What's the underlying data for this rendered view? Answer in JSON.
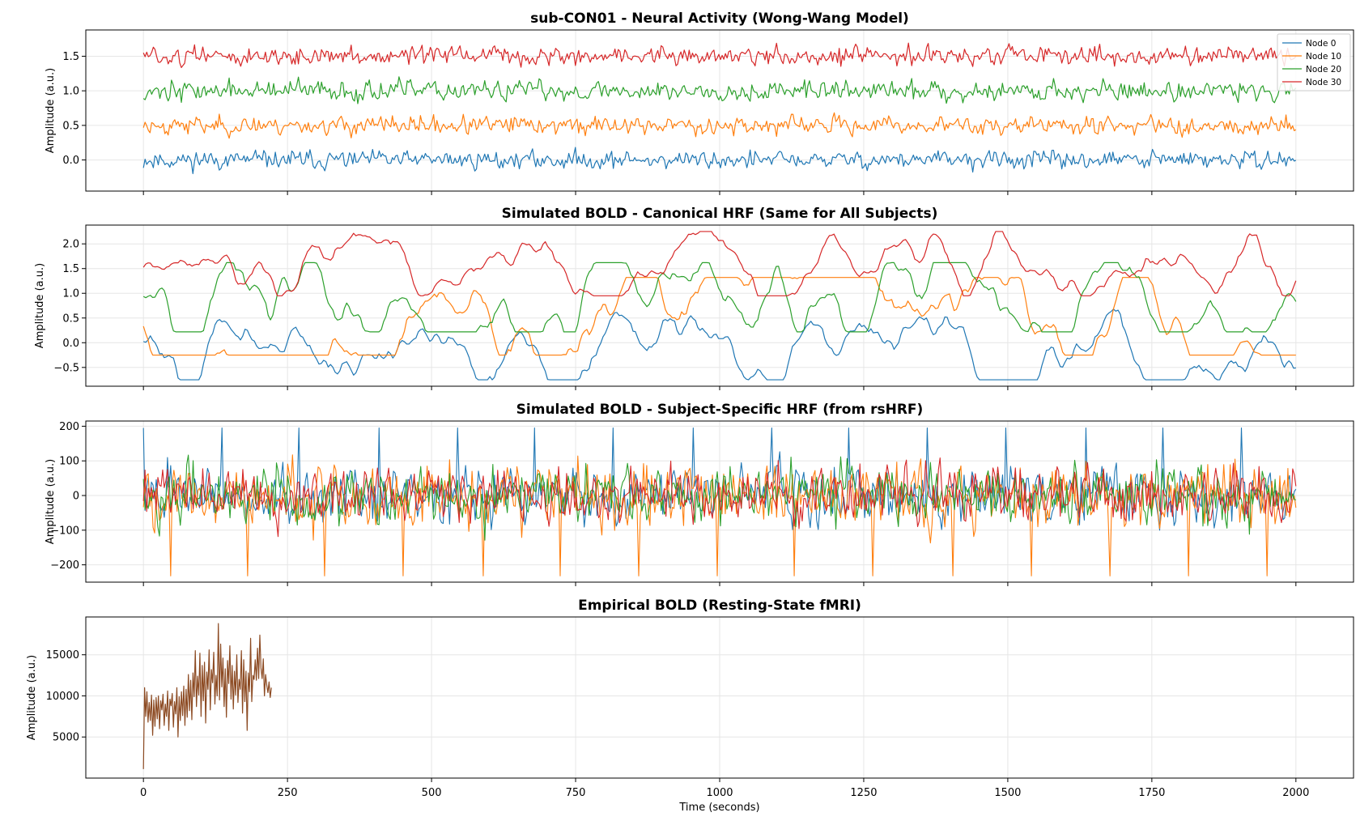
{
  "chart_data": [
    {
      "type": "line",
      "title": "sub-CON01 - Neural Activity (Wong-Wang Model)",
      "ylabel": "Amplitude (a.u.)",
      "xlabel": "",
      "xlim": [
        -100,
        2100
      ],
      "ylim": [
        -0.45,
        1.88
      ],
      "yticks": [
        0.0,
        0.5,
        1.0,
        1.5
      ],
      "xticks": [
        0,
        250,
        500,
        750,
        1000,
        1250,
        1500,
        1750,
        2000
      ],
      "show_xticklabels": false,
      "grid": true,
      "legend": "top-right",
      "x_range": [
        0,
        2000
      ],
      "n_points": 700,
      "series": [
        {
          "name": "Node 0",
          "color": "#1f77b4",
          "kind": "noise",
          "mean": 0.0,
          "amp": 0.09,
          "seed": 11,
          "min": -0.34,
          "max": 0.35
        },
        {
          "name": "Node 10",
          "color": "#ff7f0e",
          "kind": "noise",
          "mean": 0.5,
          "amp": 0.09,
          "seed": 23,
          "min": 0.2,
          "max": 0.85
        },
        {
          "name": "Node 20",
          "color": "#2ca02c",
          "kind": "noise",
          "mean": 1.0,
          "amp": 0.1,
          "seed": 37,
          "min": 0.72,
          "max": 1.35
        },
        {
          "name": "Node 30",
          "color": "#d62728",
          "kind": "noise",
          "mean": 1.5,
          "amp": 0.09,
          "seed": 51,
          "min": 1.22,
          "max": 1.78
        }
      ]
    },
    {
      "type": "line",
      "title": "Simulated BOLD - Canonical HRF (Same for All Subjects)",
      "ylabel": "Amplitude (a.u.)",
      "xlabel": "",
      "xlim": [
        -100,
        2100
      ],
      "ylim": [
        -0.88,
        2.38
      ],
      "yticks": [
        -0.5,
        0.0,
        0.5,
        1.0,
        1.5,
        2.0
      ],
      "xticks": [
        0,
        250,
        500,
        750,
        1000,
        1250,
        1500,
        1750,
        2000
      ],
      "show_xticklabels": false,
      "grid": true,
      "x_range": [
        0,
        2000
      ],
      "n_points": 500,
      "series": [
        {
          "color": "#1f77b4",
          "kind": "smooth",
          "mean": 0.0,
          "amp": 0.28,
          "seed": 101,
          "min": -0.75,
          "max": 0.8
        },
        {
          "color": "#ff7f0e",
          "kind": "smooth",
          "mean": 0.4,
          "amp": 0.32,
          "seed": 202,
          "min": -0.25,
          "max": 1.32
        },
        {
          "color": "#2ca02c",
          "kind": "smooth",
          "mean": 0.95,
          "amp": 0.3,
          "seed": 303,
          "min": 0.22,
          "max": 1.62
        },
        {
          "color": "#d62728",
          "kind": "smooth",
          "mean": 1.5,
          "amp": 0.22,
          "seed": 404,
          "min": 0.95,
          "max": 2.25
        }
      ]
    },
    {
      "type": "line",
      "title": "Simulated BOLD - Subject-Specific HRF (from rsHRF)",
      "ylabel": "Amplitude (a.u.)",
      "xlabel": "",
      "xlim": [
        -100,
        2100
      ],
      "ylim": [
        -250,
        215
      ],
      "yticks": [
        -200,
        -100,
        0,
        100,
        200
      ],
      "xticks": [
        0,
        250,
        500,
        750,
        1000,
        1250,
        1500,
        1750,
        2000
      ],
      "show_xticklabels": false,
      "grid": true,
      "x_range": [
        0,
        2000
      ],
      "n_points": 720,
      "series": [
        {
          "color": "#1f77b4",
          "kind": "spiky",
          "mean": 0,
          "amp": 55,
          "seed": 505,
          "min": -160,
          "max": 195,
          "spikes": [
            0,
            135,
            270,
            408,
            545,
            680,
            815,
            953,
            1090,
            1225,
            1360,
            1497,
            1635,
            1770,
            1905
          ]
        },
        {
          "color": "#ff7f0e",
          "kind": "spiky",
          "mean": 0,
          "amp": 65,
          "seed": 606,
          "min": -232,
          "max": 120,
          "dips": [
            48,
            180,
            315,
            450,
            590,
            722,
            860,
            995,
            1130,
            1265,
            1405,
            1540,
            1677,
            1815,
            1950
          ]
        },
        {
          "color": "#2ca02c",
          "kind": "noise",
          "mean": 0,
          "amp": 60,
          "seed": 707,
          "min": -175,
          "max": 125
        },
        {
          "color": "#d62728",
          "kind": "noise",
          "mean": 0,
          "amp": 55,
          "seed": 808,
          "min": -165,
          "max": 120
        }
      ]
    },
    {
      "type": "line",
      "title": "Empirical BOLD (Resting-State fMRI)",
      "ylabel": "Amplitude (a.u.)",
      "xlabel": "Time (seconds)",
      "xlim": [
        -100,
        2100
      ],
      "ylim": [
        0,
        19600
      ],
      "yticks": [
        5000,
        10000,
        15000
      ],
      "xticks": [
        0,
        250,
        500,
        750,
        1000,
        1250,
        1500,
        1750,
        2000
      ],
      "show_xticklabels": true,
      "grid": true,
      "series": [
        {
          "color": "#8c4a22",
          "x": [
            0,
            2,
            4,
            6,
            8,
            10,
            12,
            14,
            16,
            18,
            20,
            22,
            24,
            26,
            28,
            30,
            32,
            34,
            36,
            38,
            40,
            42,
            44,
            46,
            48,
            50,
            52,
            54,
            56,
            58,
            60,
            62,
            64,
            66,
            68,
            70,
            72,
            74,
            76,
            78,
            80,
            82,
            84,
            86,
            88,
            90,
            92,
            94,
            96,
            98,
            100,
            102,
            104,
            106,
            108,
            110,
            112,
            114,
            116,
            118,
            120,
            122,
            124,
            126,
            128,
            130,
            132,
            134,
            136,
            138,
            140,
            142,
            144,
            146,
            148,
            150,
            152,
            154,
            156,
            158,
            160,
            162,
            164,
            166,
            168,
            170,
            172,
            174,
            176,
            178,
            180,
            182,
            184,
            186,
            188,
            190,
            192,
            194,
            196,
            198,
            200,
            202,
            204,
            206,
            208,
            210,
            212,
            214,
            216,
            218,
            220,
            222
          ],
          "values": [
            1100,
            11000,
            7500,
            10500,
            6800,
            9200,
            7000,
            10100,
            5200,
            9500,
            6300,
            9800,
            7200,
            10000,
            6000,
            9400,
            8300,
            10200,
            6400,
            9000,
            7500,
            10600,
            5800,
            9600,
            8800,
            10300,
            6200,
            9300,
            7800,
            11000,
            5000,
            9900,
            7000,
            10500,
            7600,
            11200,
            6400,
            10800,
            7400,
            12600,
            8200,
            11900,
            7100,
            12800,
            9900,
            15500,
            8700,
            12400,
            10100,
            15200,
            7500,
            13700,
            9400,
            14100,
            6700,
            12900,
            10800,
            15600,
            8300,
            13200,
            11600,
            15300,
            9000,
            12500,
            10000,
            18800,
            9500,
            16300,
            11100,
            14600,
            8700,
            13300,
            7400,
            14300,
            11500,
            16100,
            9600,
            13700,
            8400,
            13000,
            10100,
            15000,
            9200,
            12000,
            10800,
            15500,
            7900,
            14400,
            9300,
            13000,
            5800,
            12800,
            10500,
            17000,
            9300,
            12500,
            12000,
            14400,
            11900,
            15800,
            12100,
            17400,
            13400,
            12100,
            14500,
            10000,
            12600,
            11300,
            10400,
            11700,
            9800,
            11000
          ]
        }
      ]
    }
  ]
}
